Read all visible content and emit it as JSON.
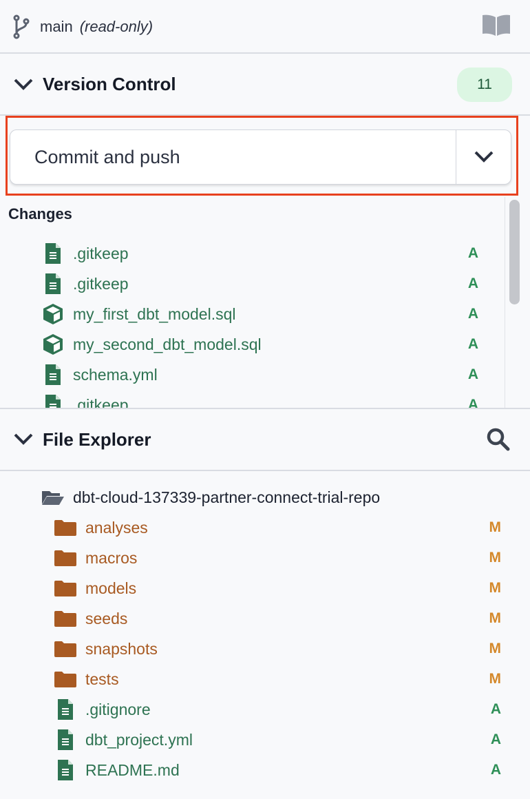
{
  "branch": {
    "name": "main",
    "mode": "(read-only)",
    "icons": [
      "git-branch-icon",
      "book-icon"
    ]
  },
  "version_control": {
    "title": "Version Control",
    "count": "11",
    "commit_button": "Commit and push",
    "changes_label": "Changes",
    "changes": [
      {
        "name": ".gitkeep",
        "icon": "file-icon",
        "status": "A"
      },
      {
        "name": ".gitkeep",
        "icon": "file-icon",
        "status": "A"
      },
      {
        "name": "my_first_dbt_model.sql",
        "icon": "cube-icon",
        "status": "A"
      },
      {
        "name": "my_second_dbt_model.sql",
        "icon": "cube-icon",
        "status": "A"
      },
      {
        "name": "schema.yml",
        "icon": "file-icon",
        "status": "A"
      },
      {
        "name": ".gitkeep",
        "icon": "file-icon",
        "status": "A"
      }
    ]
  },
  "file_explorer": {
    "title": "File Explorer",
    "root": "dbt-cloud-137339-partner-connect-trial-repo",
    "items": [
      {
        "name": "analyses",
        "type": "folder",
        "status": "M"
      },
      {
        "name": "macros",
        "type": "folder",
        "status": "M"
      },
      {
        "name": "models",
        "type": "folder",
        "status": "M"
      },
      {
        "name": "seeds",
        "type": "folder",
        "status": "M"
      },
      {
        "name": "snapshots",
        "type": "folder",
        "status": "M"
      },
      {
        "name": "tests",
        "type": "folder",
        "status": "M"
      },
      {
        "name": ".gitignore",
        "type": "file",
        "status": "A"
      },
      {
        "name": "dbt_project.yml",
        "type": "file",
        "status": "A"
      },
      {
        "name": "README.md",
        "type": "file",
        "status": "A"
      }
    ]
  },
  "colors": {
    "added": "#2e8f57",
    "modified": "#d4882a",
    "folder": "#a85a22",
    "highlight": "#e8411e",
    "badge_bg": "#dcf6e3"
  }
}
